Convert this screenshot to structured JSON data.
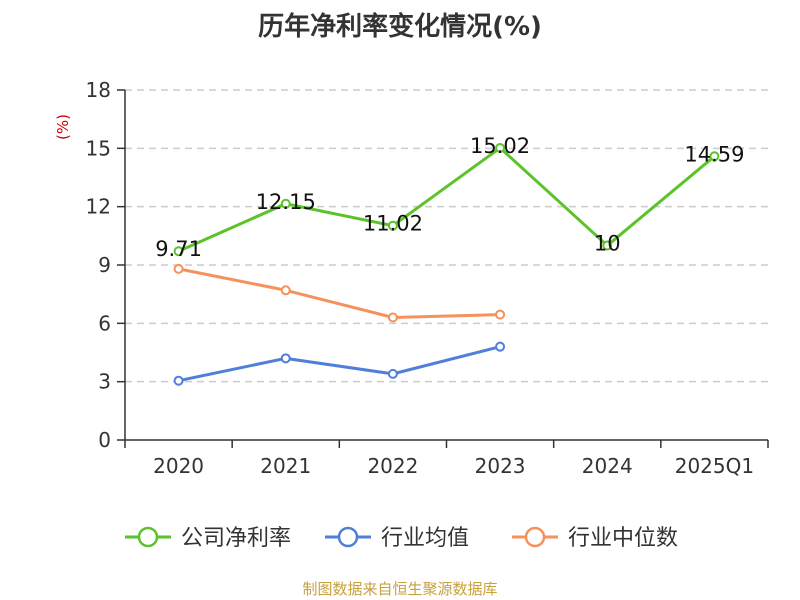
{
  "chart_data": {
    "type": "line",
    "title": "历年净利率变化情况(%)",
    "ylabel": "(%)",
    "xlabel": "",
    "categories": [
      "2020",
      "2021",
      "2022",
      "2023",
      "2024",
      "2025Q1"
    ],
    "ylim": [
      0,
      18
    ],
    "yticks": [
      "0",
      "3",
      "6",
      "9",
      "12",
      "15",
      "18"
    ],
    "grid": true,
    "legend_position": "bottom",
    "series": [
      {
        "name": "公司净利率",
        "color": "#5cc22a",
        "values": [
          9.71,
          12.15,
          11.02,
          15.02,
          10,
          14.59
        ],
        "labels": [
          "9.71",
          "12.15",
          "11.02",
          "15.02",
          "10",
          "14.59"
        ]
      },
      {
        "name": "行业均值",
        "color": "#4f7fd9",
        "values": [
          3.05,
          4.2,
          3.4,
          4.8,
          null,
          null
        ]
      },
      {
        "name": "行业中位数",
        "color": "#f5915a",
        "values": [
          8.8,
          7.7,
          6.3,
          6.45,
          null,
          null
        ]
      }
    ]
  },
  "source": "制图数据来自恒生聚源数据库"
}
